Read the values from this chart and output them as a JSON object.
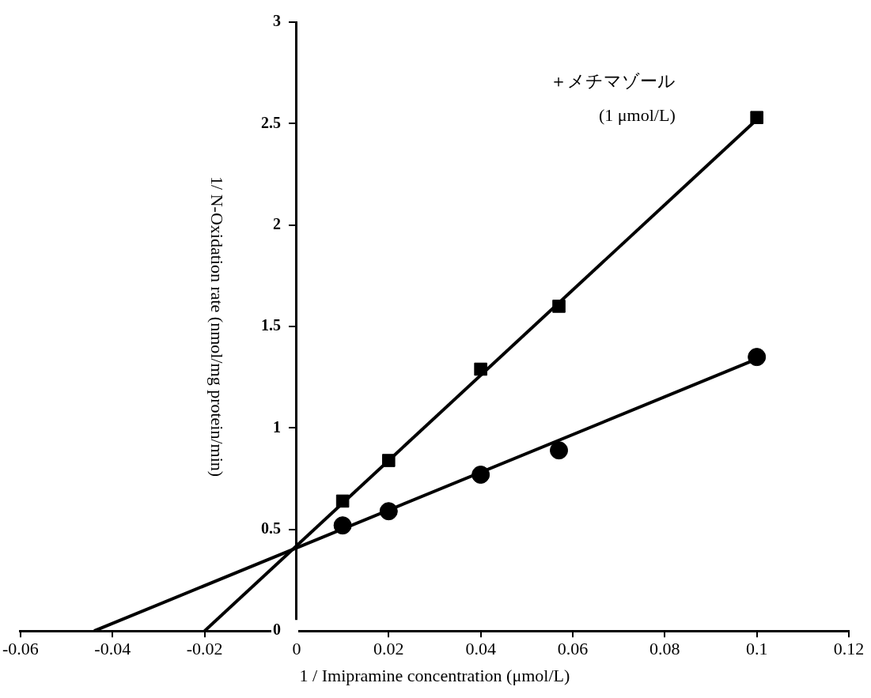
{
  "chart_data": {
    "type": "scatter",
    "xlabel": "1 / Imipramine concentration (μmol/L)",
    "ylabel": "1/ N-Oxidation rate (nmol/mg protein/min)",
    "xlim": [
      -0.06,
      0.12
    ],
    "xticks": [
      -0.06,
      -0.04,
      -0.02,
      0,
      0.02,
      0.04,
      0.06,
      0.08,
      0.1,
      0.12
    ],
    "ylim": [
      0,
      3
    ],
    "yticks": [
      0,
      0.5,
      1,
      1.5,
      2,
      2.5,
      3
    ],
    "grid": false,
    "legend": false,
    "annotations": [
      "＋メチマゾール",
      "(1 μmol/L)"
    ],
    "series": [
      {
        "marker": "circle",
        "color": "#000000",
        "x": [
          0.01,
          0.02,
          0.04,
          0.057,
          0.1
        ],
        "values": [
          0.52,
          0.59,
          0.77,
          0.89,
          1.35
        ]
      },
      {
        "marker": "square",
        "color": "#000000",
        "x": [
          0.01,
          0.02,
          0.04,
          0.057,
          0.1
        ],
        "values": [
          0.64,
          0.84,
          1.29,
          1.6,
          2.53
        ]
      },
      {
        "type": "line",
        "marker": "none",
        "color": "#000000",
        "x": [
          -0.044,
          0.1
        ],
        "values": [
          0,
          1.34
        ]
      },
      {
        "type": "line",
        "marker": "none",
        "color": "#000000",
        "x": [
          -0.02,
          0.1
        ],
        "values": [
          0,
          2.52
        ]
      }
    ]
  }
}
